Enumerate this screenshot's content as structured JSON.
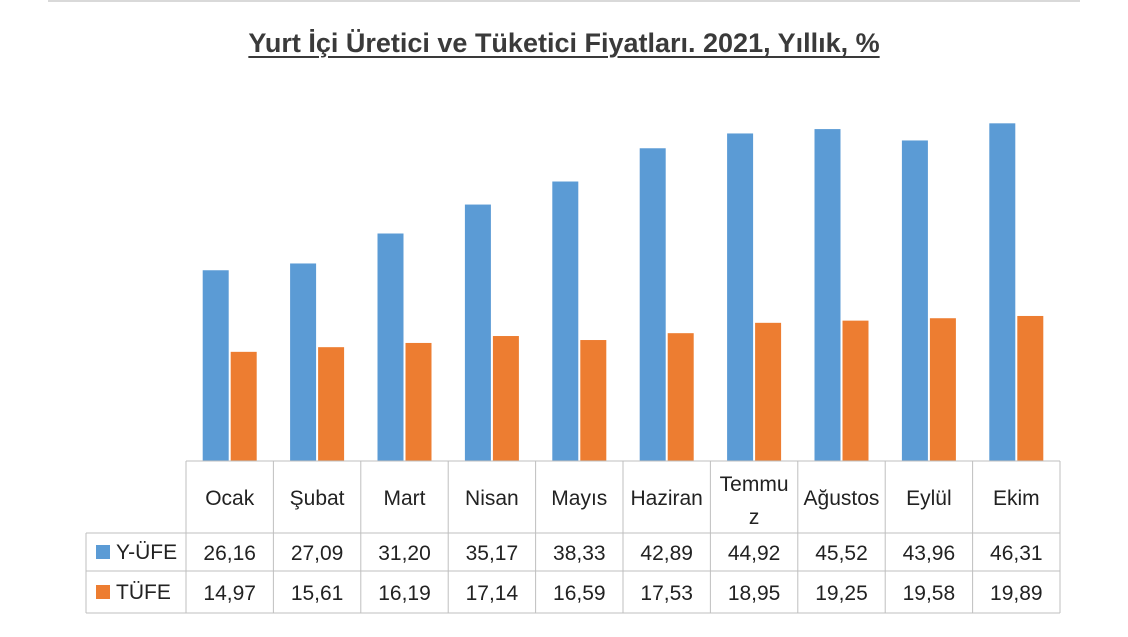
{
  "title": "Yurt İçi Üretici ve Tüketici Fiyatları. 2021, Yıllık, %",
  "chart_data": {
    "type": "bar",
    "title": "Yurt İçi Üretici ve Tüketici Fiyatları. 2021, Yıllık, %",
    "categories": [
      "Ocak",
      "Şubat",
      "Mart",
      "Nisan",
      "Mayıs",
      "Haziran",
      "Temmuz",
      "Ağustos",
      "Eylül",
      "Ekim"
    ],
    "category_labels": [
      [
        "Ocak"
      ],
      [
        "Şubat"
      ],
      [
        "Mart"
      ],
      [
        "Nisan"
      ],
      [
        "Mayıs"
      ],
      [
        "Haziran"
      ],
      [
        "Temmu",
        "z"
      ],
      [
        "Ağustos"
      ],
      [
        "Eylül"
      ],
      [
        "Ekim"
      ]
    ],
    "series": [
      {
        "name": "Y-ÜFE",
        "color": "#5b9bd5",
        "values": [
          26.16,
          27.09,
          31.2,
          35.17,
          38.33,
          42.89,
          44.92,
          45.52,
          43.96,
          46.31
        ],
        "value_labels": [
          "26,16",
          "27,09",
          "31,20",
          "35,17",
          "38,33",
          "42,89",
          "44,92",
          "45,52",
          "43,96",
          "46,31"
        ]
      },
      {
        "name": "TÜFE",
        "color": "#ed7d31",
        "values": [
          14.97,
          15.61,
          16.19,
          17.14,
          16.59,
          17.53,
          18.95,
          19.25,
          19.58,
          19.89
        ],
        "value_labels": [
          "14,97",
          "15,61",
          "16,19",
          "17,14",
          "16,59",
          "17,53",
          "18,95",
          "19,25",
          "19,58",
          "19,89"
        ]
      }
    ],
    "ylim": [
      0,
      48
    ],
    "grid": false,
    "legend": "data-table",
    "xlabel": "",
    "ylabel": ""
  }
}
